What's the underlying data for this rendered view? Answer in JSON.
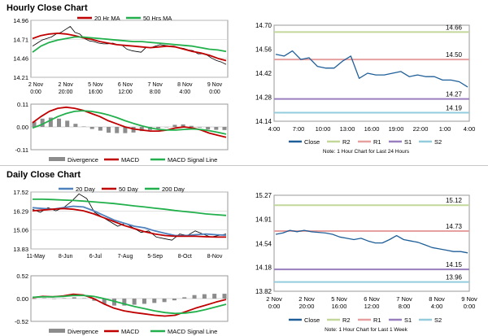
{
  "sections": {
    "hourly_title": "Hourly Close Chart",
    "daily_title": "Daily Close Chart"
  },
  "colors": {
    "price": "#000000",
    "ma_red": "#c00000",
    "ma_green": "#21b04b",
    "ma_blue": "#4f81bd",
    "divergence": "#8c8c8c",
    "zero_line": "#aaaaaa",
    "close": "#1f5f99",
    "r2": "#c4d79b",
    "r1": "#e6a0a0",
    "s1": "#9a7fbf",
    "s2": "#93cddd"
  },
  "chart_data": [
    {
      "id": "hourly-price",
      "type": "line",
      "title": "",
      "legend": [
        "20 Hr MA",
        "50 Hrs MA"
      ],
      "y_ticks": [
        "14.96",
        "14.71",
        "14.46",
        "14.21"
      ],
      "ylim": [
        14.21,
        14.96
      ],
      "x_ticks": [
        [
          "2 Nov",
          "0:00"
        ],
        [
          "2 Nov",
          "20:00"
        ],
        [
          "5 Nov",
          "16:00"
        ],
        [
          "6 Nov",
          "12:00"
        ],
        [
          "7 Nov",
          "8:00"
        ],
        [
          "8 Nov",
          "4:00"
        ],
        [
          "9 Nov",
          "0:00"
        ]
      ],
      "series": [
        {
          "name": "Price",
          "values": [
            14.62,
            14.66,
            14.7,
            14.72,
            14.74,
            14.78,
            14.8,
            14.84,
            14.88,
            14.8,
            14.78,
            14.72,
            14.69,
            14.68,
            14.66,
            14.65,
            14.65,
            14.66,
            14.64,
            14.63,
            14.58,
            14.56,
            14.55,
            14.54,
            14.6,
            14.6,
            14.62,
            14.64,
            14.63,
            14.62,
            14.62,
            14.6,
            14.59,
            14.57,
            14.56,
            14.52,
            14.52,
            14.5,
            14.46,
            14.43,
            14.41,
            14.38
          ]
        },
        {
          "name": "20 Hr MA",
          "values": [
            14.72,
            14.76,
            14.78,
            14.79,
            14.78,
            14.76,
            14.73,
            14.71,
            14.68,
            14.66,
            14.64,
            14.63,
            14.62,
            14.61,
            14.6,
            14.61,
            14.62,
            14.61,
            14.58,
            14.55,
            14.53,
            14.5,
            14.46,
            14.43
          ]
        },
        {
          "name": "50 Hrs MA",
          "values": [
            14.54,
            14.62,
            14.67,
            14.7,
            14.72,
            14.74,
            14.74,
            14.73,
            14.72,
            14.71,
            14.7,
            14.69,
            14.68,
            14.68,
            14.67,
            14.66,
            14.65,
            14.64,
            14.63,
            14.62,
            14.6,
            14.58,
            14.57,
            14.55
          ]
        }
      ]
    },
    {
      "id": "hourly-macd",
      "type": "line",
      "legend": [
        "Divergence",
        "MACD",
        "MACD Signal Line"
      ],
      "y_ticks": [
        "0.11",
        "0.00",
        "-0.11"
      ],
      "ylim": [
        -0.11,
        0.11
      ],
      "series": [
        {
          "name": "MACD",
          "values": [
            0.02,
            0.05,
            0.075,
            0.09,
            0.095,
            0.09,
            0.08,
            0.065,
            0.05,
            0.03,
            0.015,
            0.0,
            -0.01,
            -0.015,
            -0.02,
            -0.02,
            -0.015,
            -0.005,
            0.0,
            -0.005,
            -0.015,
            -0.03,
            -0.04,
            -0.05
          ]
        },
        {
          "name": "MACD Signal Line",
          "values": [
            -0.005,
            0.01,
            0.03,
            0.05,
            0.065,
            0.075,
            0.078,
            0.075,
            0.068,
            0.058,
            0.045,
            0.03,
            0.017,
            0.005,
            -0.005,
            -0.012,
            -0.015,
            -0.015,
            -0.012,
            -0.01,
            -0.012,
            -0.018,
            -0.026,
            -0.035
          ]
        },
        {
          "name": "Divergence",
          "values": [
            0.025,
            0.04,
            0.045,
            0.04,
            0.03,
            0.015,
            0.002,
            -0.01,
            -0.018,
            -0.028,
            -0.03,
            -0.03,
            -0.027,
            -0.02,
            -0.015,
            -0.008,
            0.0,
            0.01,
            0.012,
            0.005,
            -0.003,
            -0.012,
            -0.014,
            -0.015
          ]
        }
      ]
    },
    {
      "id": "hourly-sr",
      "type": "line",
      "levels": [
        {
          "name": "R2",
          "value": 14.66
        },
        {
          "name": "R1",
          "value": 14.5
        },
        {
          "name": "S1",
          "value": 14.27
        },
        {
          "name": "S2",
          "value": 14.19
        }
      ],
      "level_labels": [
        "14.66",
        "14.50",
        "14.27",
        "14.19"
      ],
      "y_ticks": [
        "14.70",
        "14.56",
        "14.42",
        "14.28",
        "14.14"
      ],
      "ylim": [
        14.14,
        14.7
      ],
      "x_ticks": [
        "4:00",
        "7:00",
        "10:00",
        "13:00",
        "16:00",
        "19:00",
        "22:00",
        "1:00",
        "4:00"
      ],
      "series": [
        {
          "name": "Close",
          "values": [
            14.53,
            14.52,
            14.55,
            14.5,
            14.51,
            14.46,
            14.45,
            14.45,
            14.49,
            14.52,
            14.39,
            14.42,
            14.41,
            14.41,
            14.42,
            14.43,
            14.4,
            14.41,
            14.4,
            14.4,
            14.38,
            14.38,
            14.37,
            14.34
          ]
        }
      ],
      "legend": [
        "Close",
        "R2",
        "R1",
        "S1",
        "S2"
      ],
      "note": "Note: 1 Hour Chart for Last 24 Hours"
    },
    {
      "id": "daily-price",
      "type": "line",
      "legend": [
        "20 Day",
        "50 Day",
        "200 Day"
      ],
      "y_ticks": [
        "17.52",
        "16.29",
        "15.06",
        "13.83"
      ],
      "ylim": [
        13.83,
        17.52
      ],
      "x_ticks": [
        "11-May",
        "8-Jun",
        "6-Jul",
        "7-Aug",
        "5-Sep",
        "8-Oct",
        "8-Nov"
      ],
      "series": [
        {
          "name": "Price",
          "values": [
            16.4,
            16.2,
            16.5,
            16.3,
            16.5,
            16.9,
            17.4,
            17.1,
            16.2,
            15.9,
            15.6,
            15.3,
            15.5,
            15.2,
            14.9,
            15.0,
            14.6,
            14.5,
            14.4,
            14.8,
            14.7,
            15.0,
            14.8,
            14.6,
            14.7,
            14.8
          ]
        },
        {
          "name": "20 Day",
          "values": [
            16.5,
            16.45,
            16.4,
            16.5,
            16.6,
            16.55,
            16.3,
            16.0,
            15.7,
            15.5,
            15.3,
            15.2,
            15.0,
            14.85,
            14.7,
            14.7,
            14.75,
            14.8,
            14.75,
            14.72
          ]
        },
        {
          "name": "50 Day",
          "values": [
            16.3,
            16.35,
            16.4,
            16.45,
            16.4,
            16.3,
            16.1,
            15.85,
            15.6,
            15.35,
            15.15,
            14.95,
            14.8,
            14.7,
            14.65,
            14.65,
            14.65,
            14.62,
            14.6,
            14.6
          ]
        },
        {
          "name": "200 Day",
          "values": [
            17.05,
            17.05,
            17.03,
            17.0,
            16.97,
            16.93,
            16.88,
            16.83,
            16.77,
            16.7,
            16.62,
            16.55,
            16.47,
            16.4,
            16.32,
            16.25,
            16.18,
            16.1,
            16.05,
            16.0
          ]
        }
      ]
    },
    {
      "id": "daily-macd",
      "type": "line",
      "legend": [
        "Divergence",
        "MACD",
        "MACD Signal Line"
      ],
      "y_ticks": [
        "0.52",
        "0.00",
        "-0.52"
      ],
      "ylim": [
        -0.52,
        0.52
      ],
      "series": [
        {
          "name": "MACD",
          "values": [
            0.02,
            0.05,
            0.04,
            0.06,
            0.1,
            0.08,
            0.0,
            -0.12,
            -0.22,
            -0.28,
            -0.32,
            -0.35,
            -0.38,
            -0.4,
            -0.38,
            -0.3,
            -0.22,
            -0.15,
            -0.08,
            -0.02
          ]
        },
        {
          "name": "MACD Signal Line",
          "values": [
            0.03,
            0.04,
            0.04,
            0.05,
            0.07,
            0.07,
            0.05,
            0.0,
            -0.06,
            -0.12,
            -0.18,
            -0.23,
            -0.28,
            -0.32,
            -0.34,
            -0.33,
            -0.3,
            -0.25,
            -0.19,
            -0.13
          ]
        },
        {
          "name": "Divergence",
          "values": [
            -0.01,
            0.01,
            0.0,
            0.01,
            0.03,
            0.01,
            -0.05,
            -0.12,
            -0.16,
            -0.16,
            -0.14,
            -0.12,
            -0.1,
            -0.08,
            -0.04,
            0.03,
            0.08,
            0.1,
            0.11,
            0.11
          ]
        }
      ]
    },
    {
      "id": "daily-sr",
      "type": "line",
      "levels": [
        {
          "name": "R2",
          "value": 15.12
        },
        {
          "name": "R1",
          "value": 14.73
        },
        {
          "name": "S1",
          "value": 14.15
        },
        {
          "name": "S2",
          "value": 13.96
        }
      ],
      "level_labels": [
        "15.12",
        "14.73",
        "14.15",
        "13.96"
      ],
      "y_ticks": [
        "15.27",
        "14.91",
        "14.54",
        "14.18",
        "13.82"
      ],
      "ylim": [
        13.82,
        15.27
      ],
      "x_ticks": [
        [
          "2 Nov",
          "0:00"
        ],
        [
          "2 Nov",
          "20:00"
        ],
        [
          "5 Nov",
          "16:00"
        ],
        [
          "6 Nov",
          "12:00"
        ],
        [
          "7 Nov",
          "8:00"
        ],
        [
          "8 Nov",
          "4:00"
        ],
        [
          "9 Nov",
          "0:00"
        ]
      ],
      "series": [
        {
          "name": "Close",
          "values": [
            14.68,
            14.7,
            14.74,
            14.72,
            14.74,
            14.72,
            14.71,
            14.7,
            14.68,
            14.64,
            14.62,
            14.6,
            14.62,
            14.58,
            14.55,
            14.55,
            14.6,
            14.66,
            14.6,
            14.58,
            14.56,
            14.52,
            14.48,
            14.46,
            14.44,
            14.42,
            14.42,
            14.4
          ]
        }
      ],
      "legend": [
        "Close",
        "R2",
        "R1",
        "S1",
        "S2"
      ],
      "note": "Note: 1 Hour Chart for Last 1 Week"
    }
  ]
}
